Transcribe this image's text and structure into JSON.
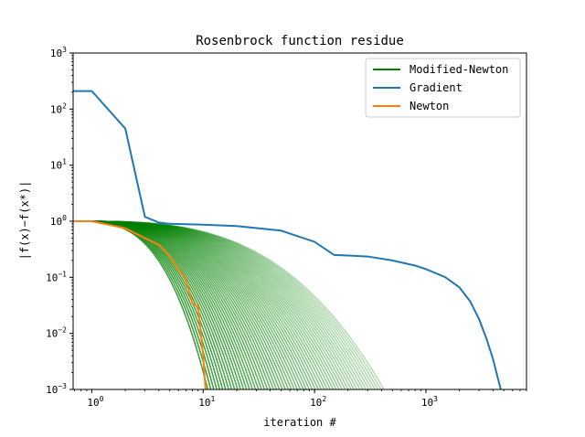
{
  "chart_data": {
    "type": "line",
    "title": "Rosenbrock function residue",
    "xlabel": "iteration #",
    "ylabel": "|f(x)−f(x*)|",
    "xscale": "log",
    "yscale": "log",
    "xlim": [
      0.68,
      8000
    ],
    "ylim": [
      0.001,
      1000
    ],
    "grid": false,
    "legend_position": "top-right",
    "x_ticks": [
      {
        "value": 1,
        "mantissa": "10",
        "exponent": "0"
      },
      {
        "value": 10,
        "mantissa": "10",
        "exponent": "1"
      },
      {
        "value": 100,
        "mantissa": "10",
        "exponent": "2"
      },
      {
        "value": 1000,
        "mantissa": "10",
        "exponent": "3"
      }
    ],
    "y_ticks": [
      {
        "value": 0.001,
        "mantissa": "10",
        "exponent": "−3"
      },
      {
        "value": 0.01,
        "mantissa": "10",
        "exponent": "−2"
      },
      {
        "value": 0.1,
        "mantissa": "10",
        "exponent": "−1"
      },
      {
        "value": 1,
        "mantissa": "10",
        "exponent": "0"
      },
      {
        "value": 10,
        "mantissa": "10",
        "exponent": "1"
      },
      {
        "value": 100,
        "mantissa": "10",
        "exponent": "2"
      },
      {
        "value": 1000,
        "mantissa": "10",
        "exponent": "3"
      }
    ],
    "legend": [
      {
        "name": "Modified-Newton",
        "color": "#008000"
      },
      {
        "name": "Gradient",
        "color": "#1f77b4"
      },
      {
        "name": "Newton",
        "color": "#ff7f0e"
      }
    ],
    "series": [
      {
        "name": "Gradient",
        "color": "#1f77b4",
        "x": [
          0.68,
          1,
          2,
          3,
          4,
          5,
          10,
          20,
          50,
          100,
          150,
          200,
          300,
          500,
          800,
          1000,
          1500,
          2000,
          2500,
          3000,
          3500,
          4000,
          4500,
          4700
        ],
        "y": [
          210,
          210,
          45,
          1.2,
          0.95,
          0.9,
          0.87,
          0.82,
          0.68,
          0.43,
          0.25,
          0.245,
          0.235,
          0.2,
          0.162,
          0.14,
          0.1,
          0.066,
          0.037,
          0.018,
          0.008,
          0.0035,
          0.0014,
          0.001
        ]
      },
      {
        "name": "Newton",
        "color": "#ff7f0e",
        "x": [
          0.68,
          1,
          2,
          3,
          4,
          5,
          6,
          7,
          8,
          9,
          10,
          10.5
        ],
        "y": [
          1.0,
          1.0,
          0.75,
          0.5,
          0.38,
          0.24,
          0.14,
          0.09,
          0.035,
          0.03,
          0.004,
          0.001
        ]
      },
      {
        "name": "Modified-Newton",
        "color": "#008000",
        "curve_count": 60,
        "start_x": 0.68,
        "start_value": 1.0,
        "end_x_min": 11,
        "end_x_max": 420,
        "end_value": 0.001
      }
    ]
  }
}
